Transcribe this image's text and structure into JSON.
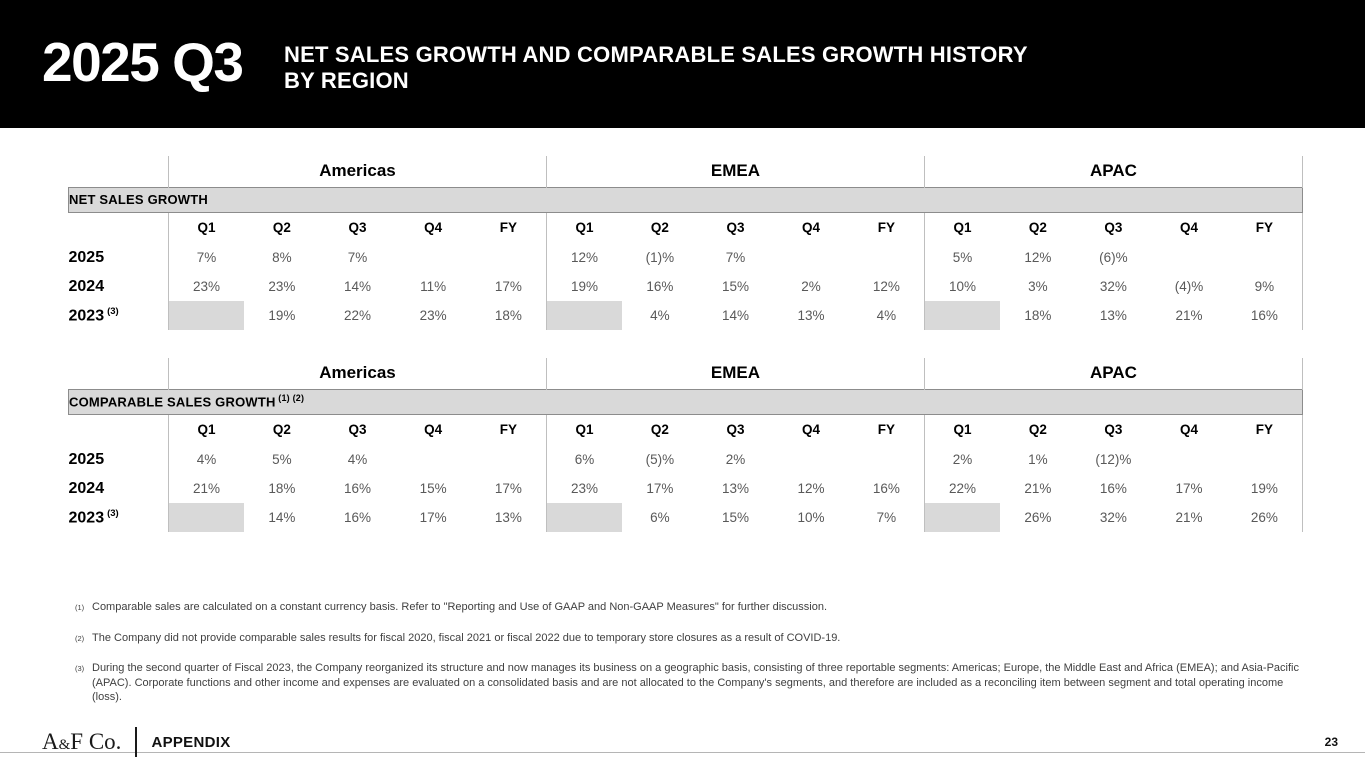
{
  "header": {
    "quarter": "2025 Q3",
    "title_line1": "NET SALES GROWTH AND COMPARABLE SALES GROWTH HISTORY",
    "title_line2": "BY REGION"
  },
  "colors": {
    "header_bg": "#000000",
    "band_bg": "#d9d9d9",
    "blank_cell_bg": "#d9d9d9",
    "grid_line": "#bfbfbf",
    "value_text": "#595959",
    "footnote_text": "#404040"
  },
  "regions": [
    "Americas",
    "EMEA",
    "APAC"
  ],
  "quarter_headers": [
    "Q1",
    "Q2",
    "Q3",
    "Q4",
    "FY"
  ],
  "tables": [
    {
      "band_label": "NET SALES GROWTH",
      "band_superscript": "",
      "rows": [
        {
          "year": "2025",
          "superscript": "",
          "values": [
            "7%",
            "8%",
            "7%",
            "",
            "",
            "12%",
            "(1)%",
            "7%",
            "",
            "",
            "5%",
            "12%",
            "(6)%",
            "",
            ""
          ]
        },
        {
          "year": "2024",
          "superscript": "",
          "values": [
            "23%",
            "23%",
            "14%",
            "11%",
            "17%",
            "19%",
            "16%",
            "15%",
            "2%",
            "12%",
            "10%",
            "3%",
            "32%",
            "(4)%",
            "9%"
          ]
        },
        {
          "year": "2023",
          "superscript": "(3)",
          "values": [
            null,
            "19%",
            "22%",
            "23%",
            "18%",
            null,
            "4%",
            "14%",
            "13%",
            "4%",
            null,
            "18%",
            "13%",
            "21%",
            "16%"
          ]
        }
      ]
    },
    {
      "band_label": "COMPARABLE SALES GROWTH",
      "band_superscript": "(1) (2)",
      "rows": [
        {
          "year": "2025",
          "superscript": "",
          "values": [
            "4%",
            "5%",
            "4%",
            "",
            "",
            "6%",
            "(5)%",
            "2%",
            "",
            "",
            "2%",
            "1%",
            "(12)%",
            "",
            ""
          ]
        },
        {
          "year": "2024",
          "superscript": "",
          "values": [
            "21%",
            "18%",
            "16%",
            "15%",
            "17%",
            "23%",
            "17%",
            "13%",
            "12%",
            "16%",
            "22%",
            "21%",
            "16%",
            "17%",
            "19%"
          ]
        },
        {
          "year": "2023",
          "superscript": "(3)",
          "values": [
            null,
            "14%",
            "16%",
            "17%",
            "13%",
            null,
            "6%",
            "15%",
            "10%",
            "7%",
            null,
            "26%",
            "32%",
            "21%",
            "26%"
          ]
        }
      ]
    }
  ],
  "footnotes": [
    {
      "marker": "(1)",
      "text": "Comparable sales are calculated on a constant currency basis. Refer to \"Reporting and Use of GAAP and Non-GAAP Measures\" for further discussion."
    },
    {
      "marker": "(2)",
      "text": "The Company did not provide comparable sales results for fiscal 2020, fiscal 2021 or fiscal 2022 due to temporary store closures as a result of COVID-19."
    },
    {
      "marker": "(3)",
      "text": "During the second quarter of Fiscal 2023, the Company reorganized its structure and now manages its business on a geographic basis, consisting of three reportable segments: Americas; Europe, the Middle East and Africa (EMEA); and Asia-Pacific (APAC). Corporate functions and other income and expenses are evaluated on a consolidated basis and are not allocated to the Company's segments, and therefore are included as a reconciling item between segment and total operating income (loss)."
    }
  ],
  "footer": {
    "brand_a": "A",
    "brand_amp": "&",
    "brand_rest": "F Co.",
    "section": "APPENDIX",
    "page_number": "23"
  }
}
